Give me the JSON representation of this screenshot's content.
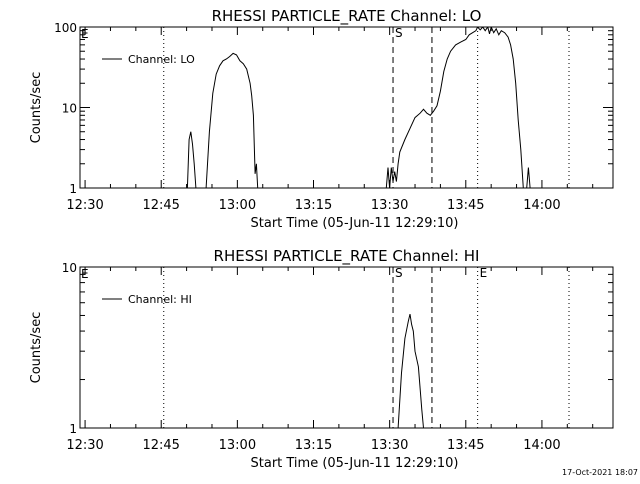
{
  "footer": {
    "timestamp": "17-Oct-2021 18:07"
  },
  "chart_data": [
    {
      "type": "line",
      "title": "RHESSI PARTICLE_RATE Channel: LO",
      "xlabel": "Start Time (05-Jun-11 12:29:10)",
      "ylabel": "Counts/sec",
      "yscale": "log",
      "xlim": [
        "12:29",
        "14:14"
      ],
      "ylim": [
        1,
        100
      ],
      "x_ticks": [
        "12:30",
        "12:45",
        "13:00",
        "13:15",
        "13:30",
        "13:45",
        "14:00"
      ],
      "y_ticks": [
        "1",
        "10",
        "100"
      ],
      "legend": {
        "position": "top-left",
        "label": "Channel: LO"
      },
      "series": [
        {
          "name": "Channel: LO",
          "points": [
            [
              "12:50:10",
              1
            ],
            [
              "12:50:30",
              4.0
            ],
            [
              "12:50:50",
              5.0
            ],
            [
              "12:51:10",
              3.5
            ],
            [
              "12:51:30",
              2.0
            ],
            [
              "12:51:50",
              1
            ],
            [
              "null",
              null
            ],
            [
              "12:53:50",
              1
            ],
            [
              "12:54:30",
              5.0
            ],
            [
              "12:55:10",
              15
            ],
            [
              "12:55:50",
              26
            ],
            [
              "12:56:30",
              33
            ],
            [
              "12:57:10",
              38
            ],
            [
              "12:57:50",
              40
            ],
            [
              "12:58:30",
              43
            ],
            [
              "12:59:10",
              47
            ],
            [
              "12:59:50",
              45
            ],
            [
              "13:00:30",
              38
            ],
            [
              "13:01:10",
              35
            ],
            [
              "13:01:50",
              30
            ],
            [
              "13:02:30",
              20
            ],
            [
              "13:02:50",
              14
            ],
            [
              "13:03:10",
              8.0
            ],
            [
              "13:03:30",
              1.5
            ],
            [
              "13:03:45",
              2.0
            ],
            [
              "13:04:00",
              1
            ],
            [
              "null",
              null
            ],
            [
              "13:29:20",
              1
            ],
            [
              "13:29:40",
              1.8
            ],
            [
              "13:30:00",
              1.0
            ],
            [
              "13:30:20",
              1.8
            ],
            [
              "13:30:40",
              1.2
            ],
            [
              "13:31:00",
              1.6
            ],
            [
              "13:31:20",
              1.2
            ],
            [
              "13:31:40",
              2.0
            ],
            [
              "13:32:00",
              2.8
            ],
            [
              "13:33:00",
              4.0
            ],
            [
              "13:34:00",
              5.5
            ],
            [
              "13:35:00",
              7.5
            ],
            [
              "13:36:00",
              8.5
            ],
            [
              "13:36:40",
              9.5
            ],
            [
              "13:37:20",
              8.5
            ],
            [
              "13:38:00",
              8.0
            ],
            [
              "13:38:40",
              9.0
            ],
            [
              "13:39:20",
              10.5
            ],
            [
              "13:40:00",
              16
            ],
            [
              "13:40:40",
              28
            ],
            [
              "13:41:20",
              40
            ],
            [
              "13:42:00",
              50
            ],
            [
              "13:43:00",
              60
            ],
            [
              "13:44:00",
              65
            ],
            [
              "13:45:00",
              70
            ],
            [
              "13:45:40",
              80
            ],
            [
              "13:46:20",
              85
            ],
            [
              "13:47:00",
              90
            ],
            [
              "13:47:20",
              100
            ],
            [
              "13:47:50",
              92
            ],
            [
              "13:48:20",
              100
            ],
            [
              "13:48:50",
              90
            ],
            [
              "13:49:20",
              100
            ],
            [
              "13:49:40",
              82
            ],
            [
              "13:50:00",
              100
            ],
            [
              "13:50:30",
              85
            ],
            [
              "13:51:00",
              95
            ],
            [
              "13:51:30",
              80
            ],
            [
              "13:52:00",
              90
            ],
            [
              "13:52:40",
              85
            ],
            [
              "13:53:20",
              75
            ],
            [
              "13:53:50",
              60
            ],
            [
              "13:54:20",
              40
            ],
            [
              "13:54:50",
              20
            ],
            [
              "13:55:20",
              7.0
            ],
            [
              "13:55:50",
              3.0
            ],
            [
              "13:56:20",
              1
            ],
            [
              "null",
              null
            ],
            [
              "13:57:00",
              1
            ],
            [
              "13:57:20",
              1.8
            ],
            [
              "13:57:40",
              1
            ]
          ]
        }
      ],
      "markers": [
        {
          "time": "12:45:30",
          "label": "",
          "style": "dotted"
        },
        {
          "time": "13:30:40",
          "label": "S",
          "style": "dashed"
        },
        {
          "time": "13:38:20",
          "label": "",
          "style": "dashed"
        },
        {
          "time": "13:47:20",
          "label": "",
          "style": "dotted"
        },
        {
          "time": "14:05:20",
          "label": "",
          "style": "dotted"
        }
      ],
      "edge_label": "E"
    },
    {
      "type": "line",
      "title": "RHESSI PARTICLE_RATE Channel: HI",
      "xlabel": "Start Time (05-Jun-11 12:29:10)",
      "ylabel": "Counts/sec",
      "yscale": "log",
      "xlim": [
        "12:29",
        "14:14"
      ],
      "ylim": [
        1,
        10
      ],
      "x_ticks": [
        "12:30",
        "12:45",
        "13:00",
        "13:15",
        "13:30",
        "13:45",
        "14:00"
      ],
      "y_ticks": [
        "1",
        "10"
      ],
      "legend": {
        "position": "top-left",
        "label": "Channel: HI"
      },
      "series": [
        {
          "name": "Channel: HI",
          "points": [
            [
              "13:31:40",
              1
            ],
            [
              "13:32:20",
              2.2
            ],
            [
              "13:33:00",
              3.6
            ],
            [
              "13:33:40",
              4.6
            ],
            [
              "13:34:00",
              5.1
            ],
            [
              "13:34:20",
              4.4
            ],
            [
              "13:34:40",
              4.0
            ],
            [
              "13:35:00",
              3.0
            ],
            [
              "13:35:40",
              2.4
            ],
            [
              "13:36:20",
              1.3
            ],
            [
              "13:36:40",
              1
            ]
          ]
        }
      ],
      "markers": [
        {
          "time": "12:45:30",
          "label": "",
          "style": "dotted"
        },
        {
          "time": "13:30:40",
          "label": "S",
          "style": "dashed"
        },
        {
          "time": "13:38:20",
          "label": "",
          "style": "dashed"
        },
        {
          "time": "13:47:20",
          "label": "E",
          "style": "dotted"
        },
        {
          "time": "14:05:20",
          "label": "",
          "style": "dotted"
        }
      ],
      "edge_label": "E"
    }
  ]
}
